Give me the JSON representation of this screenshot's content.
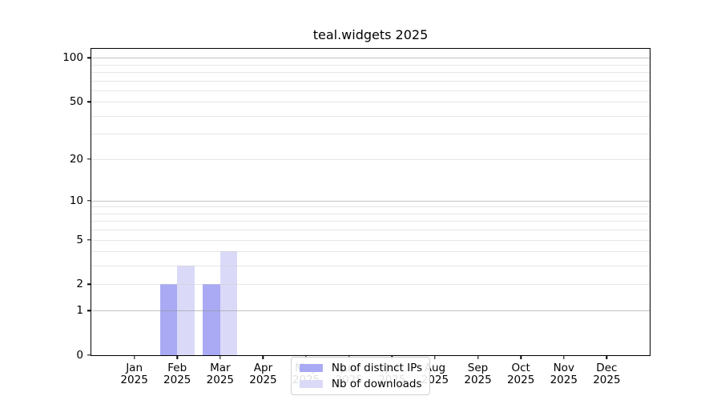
{
  "chart_data": {
    "type": "bar",
    "title": "teal.widgets 2025",
    "year_label": "2025",
    "categories": [
      "Jan",
      "Feb",
      "Mar",
      "Apr",
      "May",
      "Jun",
      "Jul",
      "Aug",
      "Sep",
      "Oct",
      "Nov",
      "Dec"
    ],
    "series": [
      {
        "name": "Nb of distinct IPs",
        "color": "#a9a9f4",
        "values": [
          0,
          2,
          2,
          0,
          0,
          0,
          0,
          0,
          0,
          0,
          0,
          0
        ]
      },
      {
        "name": "Nb of downloads",
        "color": "#dadaf8",
        "values": [
          0,
          3,
          4,
          0,
          0,
          0,
          0,
          0,
          0,
          0,
          0,
          0
        ]
      }
    ],
    "xlabel": "",
    "ylabel": "",
    "y_scale": "log10(1+y)",
    "ylim": [
      0,
      115
    ],
    "y_ticks": [
      0,
      1,
      2,
      5,
      10,
      20,
      50,
      100
    ],
    "grid": "on",
    "grid_major": [
      1,
      10,
      100
    ],
    "grid_minor": [
      2,
      3,
      4,
      5,
      6,
      7,
      8,
      9,
      20,
      30,
      40,
      50,
      60,
      70,
      80,
      90
    ],
    "legend_position": "bottom-center",
    "bar_width_fraction": 0.4
  }
}
